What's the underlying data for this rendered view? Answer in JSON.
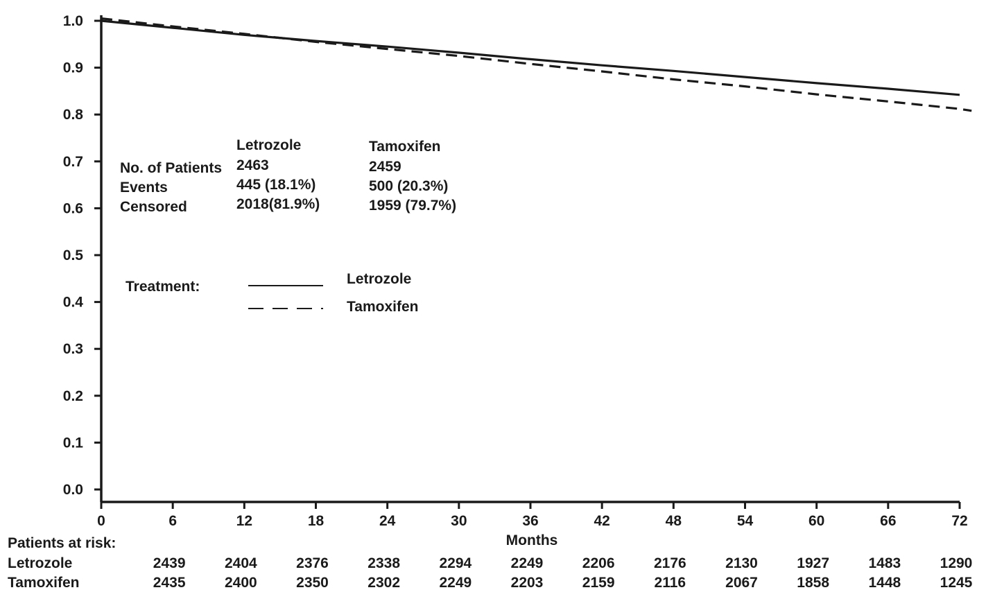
{
  "chart_data": {
    "type": "line",
    "xlabel": "Months",
    "ylabel": "",
    "title": "",
    "xlim": [
      0,
      72
    ],
    "ylim": [
      0.0,
      1.0
    ],
    "x_ticks": [
      "0",
      "6",
      "12",
      "18",
      "24",
      "30",
      "36",
      "42",
      "48",
      "54",
      "60",
      "66",
      "72"
    ],
    "y_ticks": [
      "0.0",
      "0.1",
      "0.2",
      "0.3",
      "0.4",
      "0.5",
      "0.6",
      "0.7",
      "0.8",
      "0.9",
      "1.0"
    ],
    "grid": false,
    "series": [
      {
        "name": "Letrozole",
        "style": "solid",
        "x": [
          0,
          6,
          12,
          18,
          24,
          30,
          36,
          42,
          48,
          54,
          60,
          66,
          72
        ],
        "y": [
          1.0,
          0.985,
          0.97,
          0.957,
          0.945,
          0.932,
          0.918,
          0.905,
          0.893,
          0.88,
          0.867,
          0.855,
          0.842
        ]
      },
      {
        "name": "Tamoxifen",
        "style": "dashed",
        "x": [
          0,
          6,
          12,
          18,
          24,
          30,
          36,
          42,
          48,
          54,
          60,
          66,
          72,
          73
        ],
        "y": [
          1.005,
          0.988,
          0.972,
          0.955,
          0.94,
          0.925,
          0.908,
          0.892,
          0.875,
          0.86,
          0.843,
          0.828,
          0.812,
          0.808
        ]
      }
    ],
    "summary_table": {
      "col_headers": [
        "Letrozole",
        "Tamoxifen"
      ],
      "rows": [
        {
          "label": "No. of Patients",
          "values": [
            "2463",
            "2459"
          ]
        },
        {
          "label": "Events",
          "values": [
            "445 (18.1%)",
            "500 (20.3%)"
          ]
        },
        {
          "label": "Censored",
          "values": [
            "2018(81.9%)",
            "1959 (79.7%)"
          ]
        }
      ]
    },
    "legend": {
      "title": "Treatment:",
      "placement": "center-left",
      "entries": [
        "Letrozole",
        "Tamoxifen"
      ]
    },
    "risk_table": {
      "title": "Patients at risk:",
      "x": [
        6,
        12,
        18,
        24,
        30,
        36,
        42,
        48,
        54,
        60,
        66,
        72
      ],
      "rows": [
        {
          "label": "Letrozole",
          "values": [
            "2439",
            "2404",
            "2376",
            "2338",
            "2294",
            "2249",
            "2206",
            "2176",
            "2130",
            "1927",
            "1483",
            "1290"
          ]
        },
        {
          "label": "Tamoxifen",
          "values": [
            "2435",
            "2400",
            "2350",
            "2302",
            "2249",
            "2203",
            "2159",
            "2116",
            "2067",
            "1858",
            "1448",
            "1245"
          ]
        }
      ]
    },
    "colors": {
      "line": "#1a1a1a",
      "background": "#ffffff"
    }
  }
}
